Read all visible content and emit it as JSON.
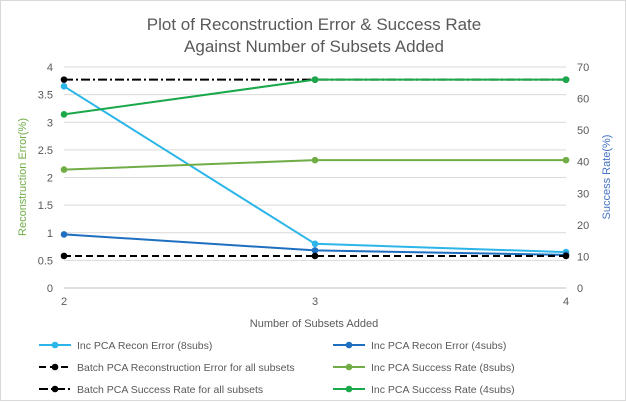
{
  "chart_data": {
    "type": "line",
    "title": [
      "Plot of Reconstruction Error & Success Rate",
      "Against Number of Subsets Added"
    ],
    "xlabel": "Number  of Subsets Added",
    "ylabel_left": "Reconstruction Error(%)",
    "ylabel_right": "Success Rate(%)",
    "x": [
      2,
      3,
      4
    ],
    "x_ticks": [
      "2",
      "3",
      "4"
    ],
    "ylim_left": [
      0,
      4
    ],
    "yticks_left": [
      "0",
      "0.5",
      "1",
      "1.5",
      "2",
      "2.5",
      "3",
      "3.5",
      "4"
    ],
    "ylim_right": [
      0,
      70
    ],
    "yticks_right": [
      "0",
      "10",
      "20",
      "30",
      "40",
      "50",
      "60",
      "70"
    ],
    "grid": "horizontal",
    "legend_placement": "bottom",
    "series": [
      {
        "name": "Inc PCA Recon Error (8subs)",
        "axis": "left",
        "values": [
          3.65,
          0.8,
          0.65
        ],
        "color": "#2bb5e8",
        "dash": "solid"
      },
      {
        "name": "Inc PCA Recon Error (4subs)",
        "axis": "left",
        "values": [
          0.97,
          0.68,
          0.6
        ],
        "color": "#1f6fc0",
        "dash": "solid"
      },
      {
        "name": "Batch PCA Reconstruction Error for all subsets",
        "axis": "left",
        "values": [
          0.58,
          0.58,
          0.58
        ],
        "color": "#000000",
        "dash": "dash"
      },
      {
        "name": "Inc PCA Success Rate (8subs)",
        "axis": "right",
        "values": [
          37.5,
          40.5,
          40.5
        ],
        "color": "#70ad47",
        "dash": "solid"
      },
      {
        "name": "Batch PCA Success Rate for all subsets",
        "axis": "right",
        "values": [
          66,
          66,
          66
        ],
        "color": "#000000",
        "dash": "dashdot"
      },
      {
        "name": "Inc PCA Success Rate (4subs)",
        "axis": "right",
        "values": [
          55,
          66,
          66
        ],
        "color": "#1aa84b",
        "dash": "solid"
      }
    ],
    "legend_order": [
      0,
      1,
      2,
      3,
      4,
      5
    ],
    "colors": {
      "left_axis_label": "#70ad47",
      "right_axis_label": "#4472c4",
      "gridline": "#d9d9d9",
      "text": "#595959"
    }
  }
}
